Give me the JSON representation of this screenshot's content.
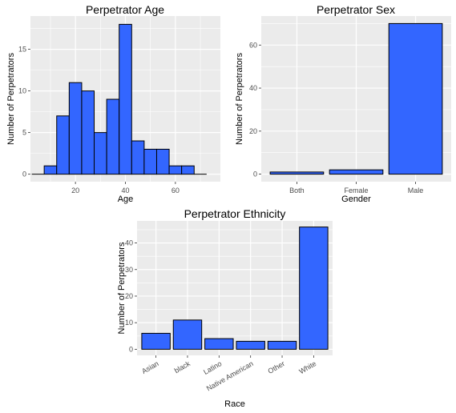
{
  "chart_data": [
    {
      "type": "bar",
      "title": "Perpetrator Age",
      "xlabel": "Age",
      "ylabel": "Number of Perpetrators",
      "bin_width": 5,
      "x": [
        5,
        10,
        15,
        20,
        25,
        30,
        35,
        40,
        45,
        50,
        55,
        60,
        65,
        70
      ],
      "values": [
        0,
        1,
        7,
        11,
        10,
        5,
        9,
        18,
        4,
        3,
        3,
        1,
        1,
        0
      ],
      "xlim": [
        2,
        78
      ],
      "ylim": [
        -0.9,
        19
      ],
      "xticks": [
        20,
        40,
        60
      ],
      "yticks": [
        0,
        5,
        10,
        15
      ],
      "grid": true,
      "bar_color": "#3366FF",
      "panel_color": "#EBEBEB"
    },
    {
      "type": "bar",
      "title": "Perpetrator Sex",
      "xlabel": "Gender",
      "ylabel": "Number of Perpetrators",
      "categories": [
        "Both",
        "Female",
        "Male"
      ],
      "values": [
        1,
        2,
        70
      ],
      "ylim": [
        -3.5,
        73.5
      ],
      "yticks": [
        0,
        20,
        40,
        60
      ],
      "grid": true,
      "bar_color": "#3366FF",
      "panel_color": "#EBEBEB"
    },
    {
      "type": "bar",
      "title": "Perpetrator Ethnicity",
      "xlabel": "Race",
      "ylabel": "Number of Perpetrators",
      "categories": [
        "Asian",
        "black",
        "Latino",
        "Native American",
        "Other",
        "White"
      ],
      "values": [
        6,
        11,
        4,
        3,
        3,
        46
      ],
      "ylim": [
        -2.3,
        48.3
      ],
      "yticks": [
        0,
        10,
        20,
        30,
        40
      ],
      "grid": true,
      "bar_color": "#3366FF",
      "panel_color": "#EBEBEB"
    }
  ]
}
